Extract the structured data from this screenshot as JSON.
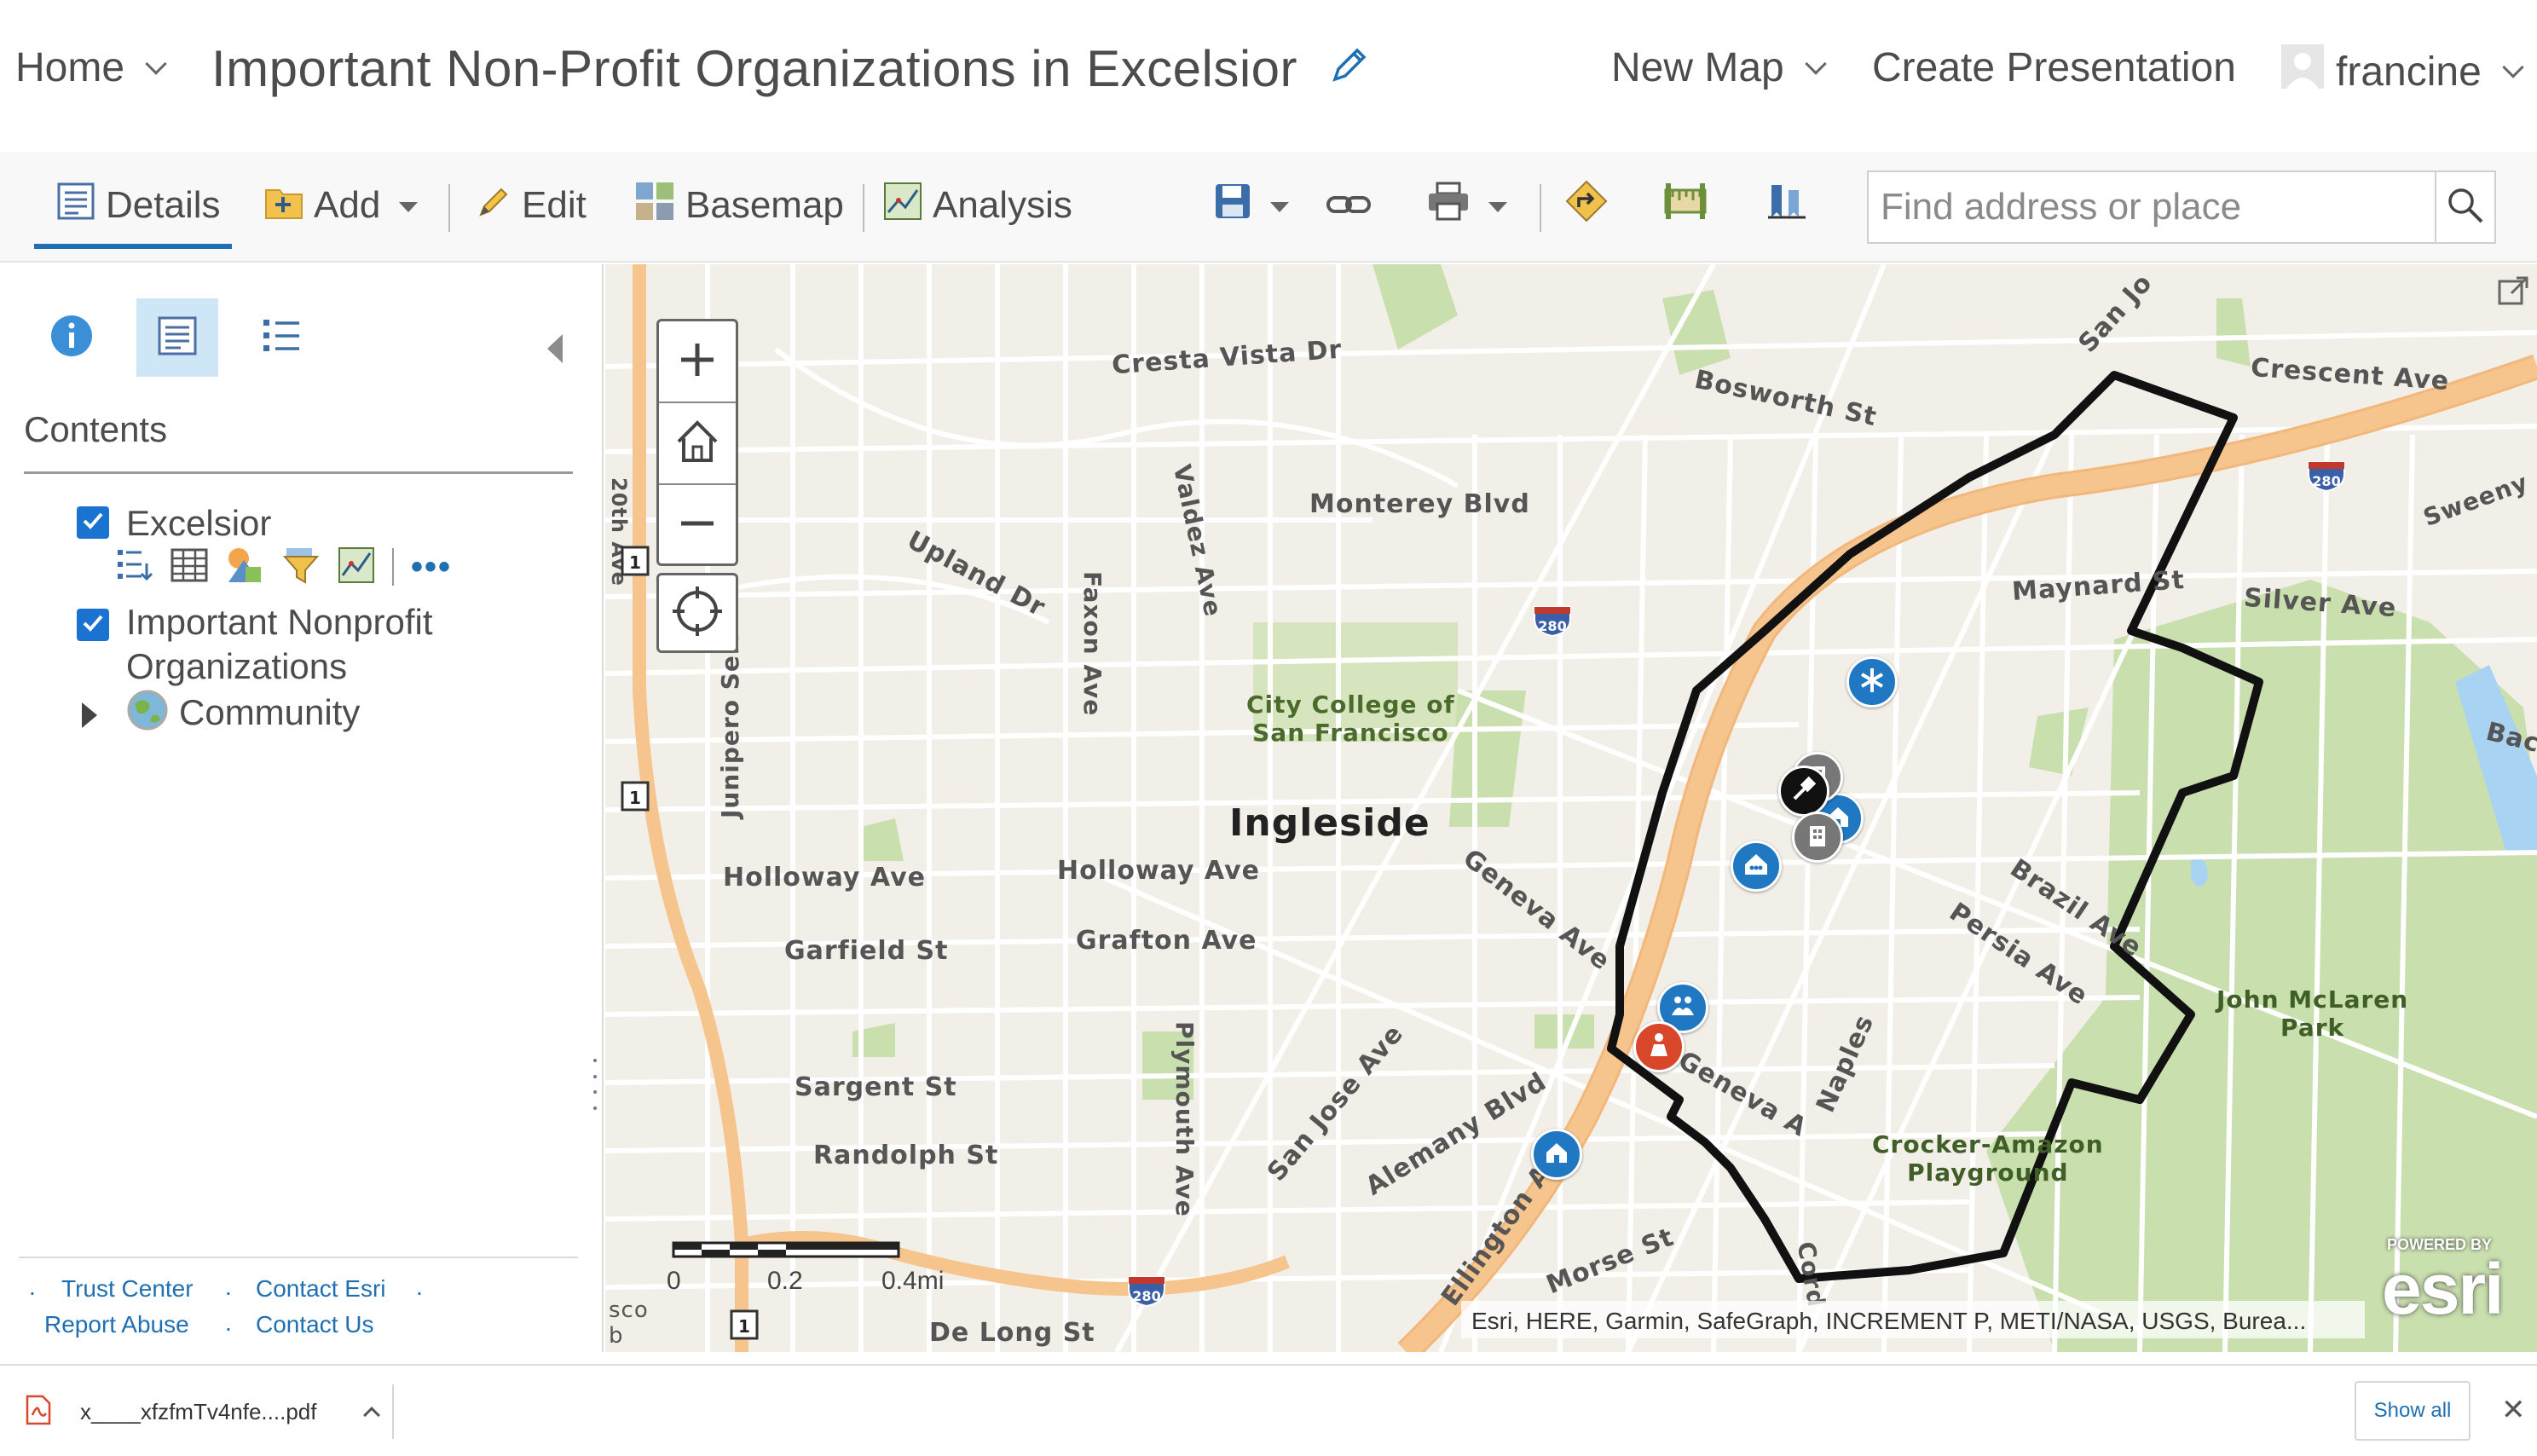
{
  "header": {
    "home_label": "Home",
    "title": "Important Non-Profit Organizations in Excelsior",
    "new_map_label": "New Map",
    "create_presentation_label": "Create Presentation",
    "user_name": "francine"
  },
  "toolbar": {
    "details_label": "Details",
    "add_label": "Add",
    "edit_label": "Edit",
    "basemap_label": "Basemap",
    "analysis_label": "Analysis",
    "search_placeholder": "Find address or place"
  },
  "panel": {
    "contents_title": "Contents",
    "layers": [
      {
        "label": "Excelsior",
        "checked": true
      },
      {
        "label": "Important Nonprofit",
        "label2": "Organizations",
        "checked": true
      },
      {
        "label": "Community",
        "checked": false
      }
    ],
    "footer_links": {
      "trust_center": "Trust Center",
      "contact_esri": "Contact Esri",
      "report_abuse": "Report Abuse",
      "contact_us": "Contact Us"
    }
  },
  "map": {
    "labels": {
      "cresta_vista": "Cresta Vista Dr",
      "bosworth": "Bosworth St",
      "san_jo": "San Jo",
      "crescent": "Crescent Ave",
      "sweeny": "Sweeny",
      "monterey": "Monterey Blvd",
      "valdez": "Valdez Ave",
      "upland": "Upland Dr",
      "faxon": "Faxon Ave",
      "maynard": "Maynard St",
      "silver": "Silver Ave",
      "college_1": "City College of",
      "college_2": "San Francisco",
      "junipero": "Junipero Serr",
      "ingleside": "Ingleside",
      "holloway_1": "Holloway Ave",
      "holloway_2": "Holloway Ave",
      "garfield": "Garfield St",
      "grafton": "Grafton Ave",
      "geneva_1": "Geneva Ave",
      "geneva_2": "Geneva A",
      "brazil": "Brazil Ave",
      "persia": "Persia Ave",
      "mclaren_1": "John McLaren",
      "mclaren_2": "Park",
      "sargent": "Sargent St",
      "plymouth": "Plymouth Ave",
      "randolph": "Randolph St",
      "san_jose": "San Jose Ave",
      "alemany": "Alemany Blvd",
      "naples": "Naples",
      "crocker_1": "Crocker-Amazon",
      "crocker_2": "Playground",
      "ellington": "Ellington Ave",
      "morse": "Morse St",
      "cord": "Cord",
      "de_long": "De Long St",
      "bac": "Bac",
      "ave_edge": "20th Ave",
      "sco": "sco",
      "b_edge": "b"
    },
    "shields": {
      "i280": "280",
      "route1": "1"
    },
    "scale": {
      "zero": "0",
      "mid": "0.2",
      "end": "0.4mi"
    },
    "attribution": "Esri, HERE, Garmin, SafeGraph, INCREMENT P, METI/NASA, USGS, Burea...",
    "powered_by": "POWERED BY",
    "esri": "esri"
  },
  "downloads": {
    "file_name": "x____xfzfmTv4nfe....pdf",
    "show_all": "Show all"
  },
  "colors": {
    "accent": "#1f6fb3",
    "freeway": "#f6c58e",
    "park": "#c9dfae",
    "water": "#a9d3f3",
    "boundary": "#1a1a1a"
  }
}
